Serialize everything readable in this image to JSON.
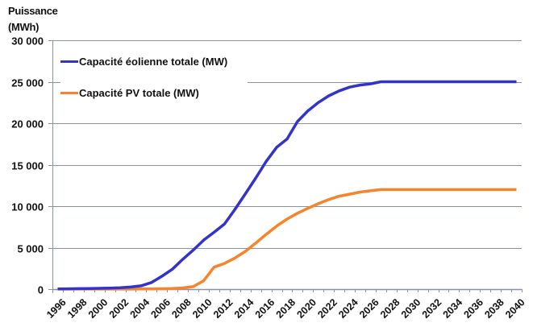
{
  "chart_data": {
    "type": "line",
    "title": "",
    "ylabel": "Puissance (MWh)",
    "ylabel_lines": [
      "Puissance",
      "(MWh)"
    ],
    "xlabel": "",
    "ylim": [
      0,
      30000
    ],
    "yticks": [
      0,
      5000,
      10000,
      15000,
      20000,
      25000,
      30000
    ],
    "ytick_labels": [
      "0",
      "5 000",
      "10 000",
      "15 000",
      "20 000",
      "25 000",
      "30 000"
    ],
    "x": [
      1996,
      1997,
      1998,
      1999,
      2000,
      2001,
      2002,
      2003,
      2004,
      2005,
      2006,
      2007,
      2008,
      2009,
      2010,
      2011,
      2012,
      2013,
      2014,
      2015,
      2016,
      2017,
      2018,
      2019,
      2020,
      2021,
      2022,
      2023,
      2024,
      2025,
      2026,
      2027,
      2028,
      2029,
      2030,
      2031,
      2032,
      2033,
      2034,
      2035,
      2036,
      2037,
      2038,
      2039,
      2040
    ],
    "xtick_labels": [
      "1996",
      "1998",
      "2000",
      "2002",
      "2004",
      "2006",
      "2008",
      "2010",
      "2012",
      "2014",
      "2016",
      "2018",
      "2020",
      "2022",
      "2024",
      "2026",
      "2028",
      "2030",
      "2032",
      "2034",
      "2036",
      "2038",
      "2040"
    ],
    "grid": true,
    "legend_position": "upper left",
    "series": [
      {
        "name": "Capacité éolienne totale (MW)",
        "color": "#3333cc",
        "values": [
          20,
          40,
          60,
          80,
          100,
          130,
          170,
          250,
          400,
          800,
          1550,
          2400,
          3600,
          4700,
          5900,
          6850,
          7850,
          9600,
          11500,
          13400,
          15400,
          17100,
          18100,
          20200,
          21500,
          22500,
          23300,
          23900,
          24350,
          24600,
          24750,
          25000,
          25000,
          25000,
          25000,
          25000,
          25000,
          25000,
          25000,
          25000,
          25000,
          25000,
          25000,
          25000,
          25000
        ]
      },
      {
        "name": "Capacité PV totale (MW)",
        "color": "#f7842a",
        "values": [
          5,
          5,
          5,
          5,
          5,
          5,
          10,
          10,
          20,
          30,
          50,
          80,
          150,
          300,
          1000,
          2650,
          3100,
          3750,
          4550,
          5550,
          6600,
          7600,
          8450,
          9150,
          9750,
          10300,
          10800,
          11200,
          11450,
          11700,
          11850,
          12000,
          12000,
          12000,
          12000,
          12000,
          12000,
          12000,
          12000,
          12000,
          12000,
          12000,
          12000,
          12000,
          12000
        ]
      }
    ]
  },
  "colors": {
    "gridline": "#8a90a8",
    "axis": "#8a90a8",
    "text": "#111111"
  }
}
